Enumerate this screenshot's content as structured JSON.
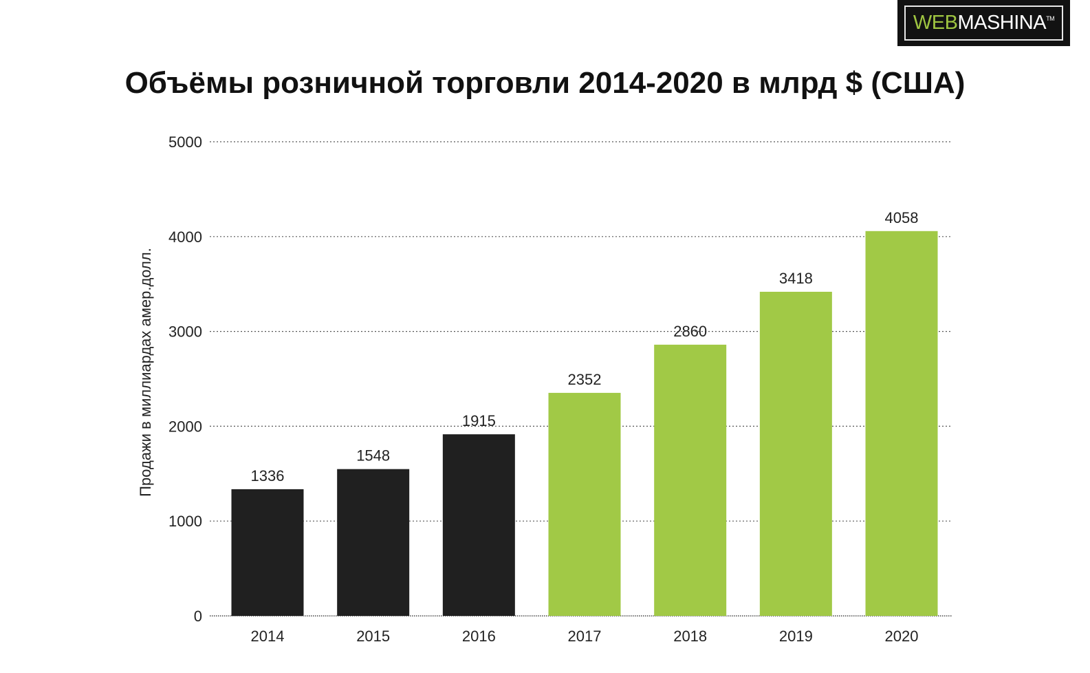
{
  "logo": {
    "part1": "WEB",
    "part2": "MASHINA",
    "tm": "TM"
  },
  "chart_data": {
    "type": "bar",
    "title": "Объёмы розничной торговли 2014-2020 в млрд $ (США)",
    "xlabel": "",
    "ylabel": "Продажи в миллиардах амер.долл.",
    "categories": [
      "2014",
      "2015",
      "2016",
      "2017",
      "2018",
      "2019",
      "2020"
    ],
    "values": [
      1336,
      1548,
      1915,
      2352,
      2860,
      3418,
      4058
    ],
    "yticks": [
      0,
      1000,
      2000,
      3000,
      4000,
      5000
    ],
    "ylim": [
      0,
      5000
    ],
    "grid": true,
    "colors": [
      "#202020",
      "#202020",
      "#202020",
      "#a1c946",
      "#a1c946",
      "#a1c946",
      "#a1c946"
    ]
  }
}
